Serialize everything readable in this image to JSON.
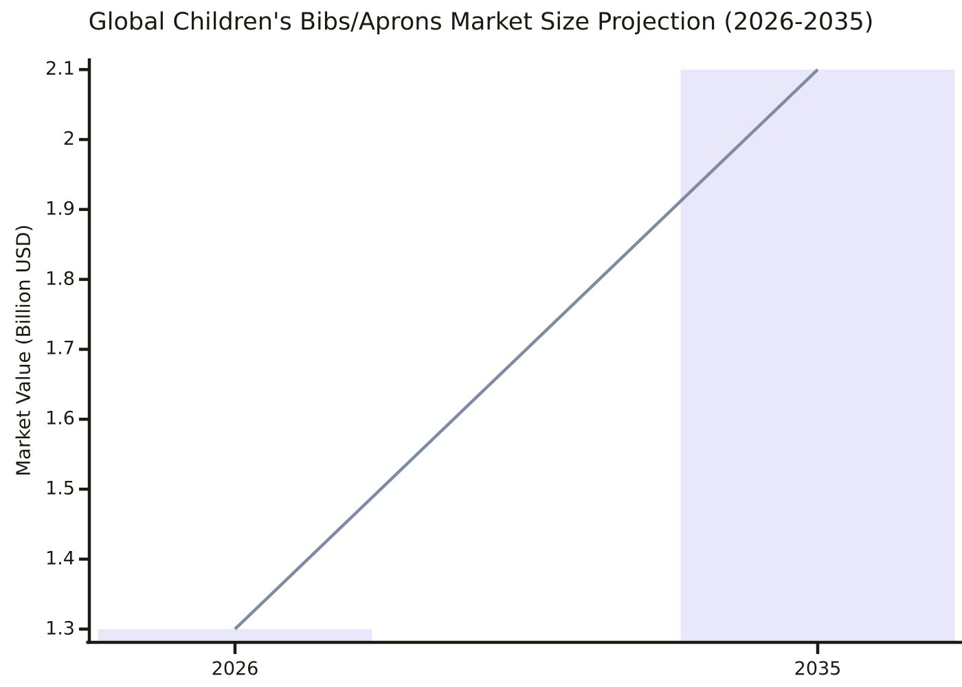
{
  "chart_data": {
    "type": "bar",
    "title": "Global Children's Bibs/Aprons Market Size Projection (2026-2035)",
    "xlabel": "",
    "ylabel": "Market Value (Billion USD)",
    "categories": [
      "2026",
      "2035"
    ],
    "values": [
      1.3,
      2.1
    ],
    "series": [
      {
        "name": "market-value-bars",
        "type": "bar",
        "values": [
          1.3,
          2.1
        ]
      },
      {
        "name": "projection-trend-line",
        "type": "line",
        "values": [
          1.3,
          2.1
        ]
      }
    ],
    "ylim": [
      1.281,
      2.116
    ],
    "yticks": [
      1.3,
      1.4,
      1.5,
      1.6,
      1.7,
      1.8,
      1.9,
      2.0,
      2.1
    ],
    "ytick_labels": [
      "1.3",
      "1.4",
      "1.5",
      "1.6",
      "1.7",
      "1.8",
      "1.9",
      "2",
      "2.1"
    ],
    "grid": false,
    "legend": false,
    "colors": {
      "bar_fill": "#e8e8fa",
      "line": "#7d8ca0",
      "axis": "#1a1a12",
      "text": "#1a1a12"
    }
  }
}
